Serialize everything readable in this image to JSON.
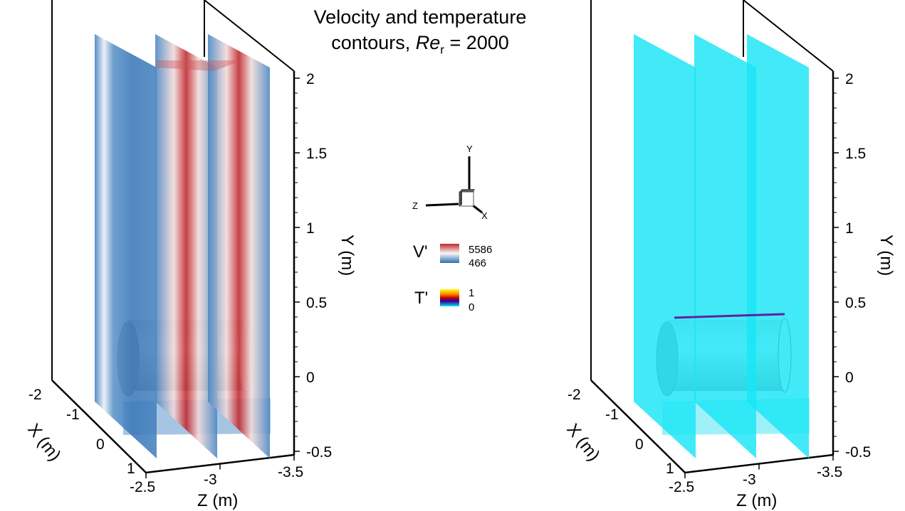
{
  "title": {
    "line1": "Velocity and temperature",
    "line2_prefix": "contours, ",
    "re_symbol": "Re",
    "re_subscript": "r",
    "line2_suffix": " = 2000"
  },
  "legend": {
    "velocity": {
      "label": "V'",
      "max": "5586",
      "min": "466",
      "colors": [
        "#c0272d",
        "#f7f7f7",
        "#2c6fb0"
      ]
    },
    "temperature": {
      "label": "T'",
      "max": "1",
      "min": "0",
      "colors": [
        "#ffff00",
        "#ff8000",
        "#c00000",
        "#30009a",
        "#00e5ff"
      ]
    }
  },
  "triad": {
    "x": "X",
    "y": "Y",
    "z": "Z"
  },
  "chart_data": [
    {
      "type": "contour",
      "name": "velocity",
      "field": "V'",
      "range": [
        466,
        5586
      ],
      "xlabel": "X (m)",
      "ylabel": "Y (m)",
      "zlabel": "Z (m)",
      "xticks": [
        "-2",
        "-1",
        "0",
        "1"
      ],
      "yticks": [
        "2",
        "1.5",
        "1",
        "0.5",
        "0",
        "-0.5"
      ],
      "zticks": [
        "-2.5",
        "-3",
        "-3.5"
      ],
      "xlim": [
        -2,
        1
      ],
      "ylim": [
        -0.5,
        2
      ],
      "zlim": [
        -2.5,
        -3.5
      ]
    },
    {
      "type": "contour",
      "name": "temperature",
      "field": "T'",
      "range": [
        0,
        1
      ],
      "xlabel": "X (m)",
      "ylabel": "Y (m)",
      "zlabel": "Z (m)",
      "xticks": [
        "-2",
        "-1",
        "0",
        "1"
      ],
      "yticks": [
        "2",
        "1.5",
        "1",
        "0.5",
        "0",
        "-0.5"
      ],
      "zticks": [
        "-2.5",
        "-3",
        "-3.5"
      ],
      "xlim": [
        -2,
        1
      ],
      "ylim": [
        -0.5,
        2
      ],
      "zlim": [
        -2.5,
        -3.5
      ]
    }
  ]
}
